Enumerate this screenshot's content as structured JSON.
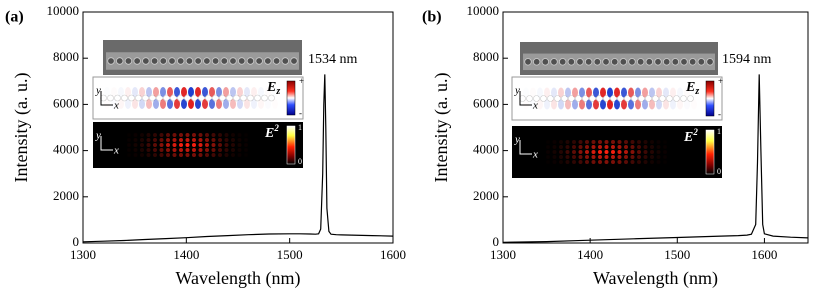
{
  "chart_data": [
    {
      "type": "line",
      "panel_label": "(a)",
      "x_label": "Wavelength (nm)",
      "y_label": "Intensity (a. u.)",
      "peak_label": "1534 nm",
      "color": "#000000",
      "x": [
        1300,
        1320,
        1340,
        1360,
        1380,
        1400,
        1420,
        1440,
        1460,
        1480,
        1500,
        1510,
        1520,
        1525,
        1528,
        1530,
        1532,
        1533,
        1534,
        1535,
        1536,
        1538,
        1540,
        1545,
        1550,
        1560,
        1580,
        1600
      ],
      "values": [
        50,
        80,
        110,
        150,
        190,
        230,
        280,
        320,
        360,
        390,
        400,
        400,
        390,
        380,
        400,
        600,
        3000,
        6000,
        7300,
        5000,
        1500,
        500,
        380,
        360,
        350,
        340,
        320,
        300
      ],
      "xlim": [
        1300,
        1600
      ],
      "xticks": [
        1300,
        1400,
        1500,
        1600
      ],
      "ylim": [
        0,
        10000
      ],
      "yticks": [
        0,
        2000,
        4000,
        6000,
        8000,
        10000
      ],
      "insets": {
        "ez_label": "E",
        "ez_subscript": "z",
        "ez_top": "+",
        "ez_bottom": "-",
        "e2_label": "E",
        "e2_superscript": "2",
        "e2_top": "1",
        "e2_bottom": "0",
        "axis_x": "x",
        "axis_y": "y"
      }
    },
    {
      "type": "line",
      "panel_label": "(b)",
      "x_label": "Wavelength (nm)",
      "y_label": "Intensity (a. u.)",
      "peak_label": "1594 nm",
      "color": "#000000",
      "x": [
        1300,
        1350,
        1400,
        1450,
        1500,
        1550,
        1570,
        1580,
        1585,
        1590,
        1592,
        1594,
        1596,
        1598,
        1600,
        1610,
        1630,
        1650
      ],
      "values": [
        30,
        60,
        120,
        180,
        240,
        300,
        320,
        340,
        380,
        800,
        3500,
        7300,
        4000,
        800,
        400,
        300,
        250,
        220
      ],
      "xlim": [
        1300,
        1650
      ],
      "xticks": [
        1300,
        1400,
        1500,
        1600
      ],
      "ylim": [
        0,
        10000
      ],
      "yticks": [
        0,
        2000,
        4000,
        6000,
        8000,
        10000
      ],
      "insets": {
        "ez_label": "E",
        "ez_subscript": "z",
        "ez_top": "+",
        "ez_bottom": "-",
        "e2_label": "E",
        "e2_superscript": "2",
        "e2_top": "1",
        "e2_bottom": "0",
        "axis_x": "x",
        "axis_y": "y"
      }
    }
  ]
}
